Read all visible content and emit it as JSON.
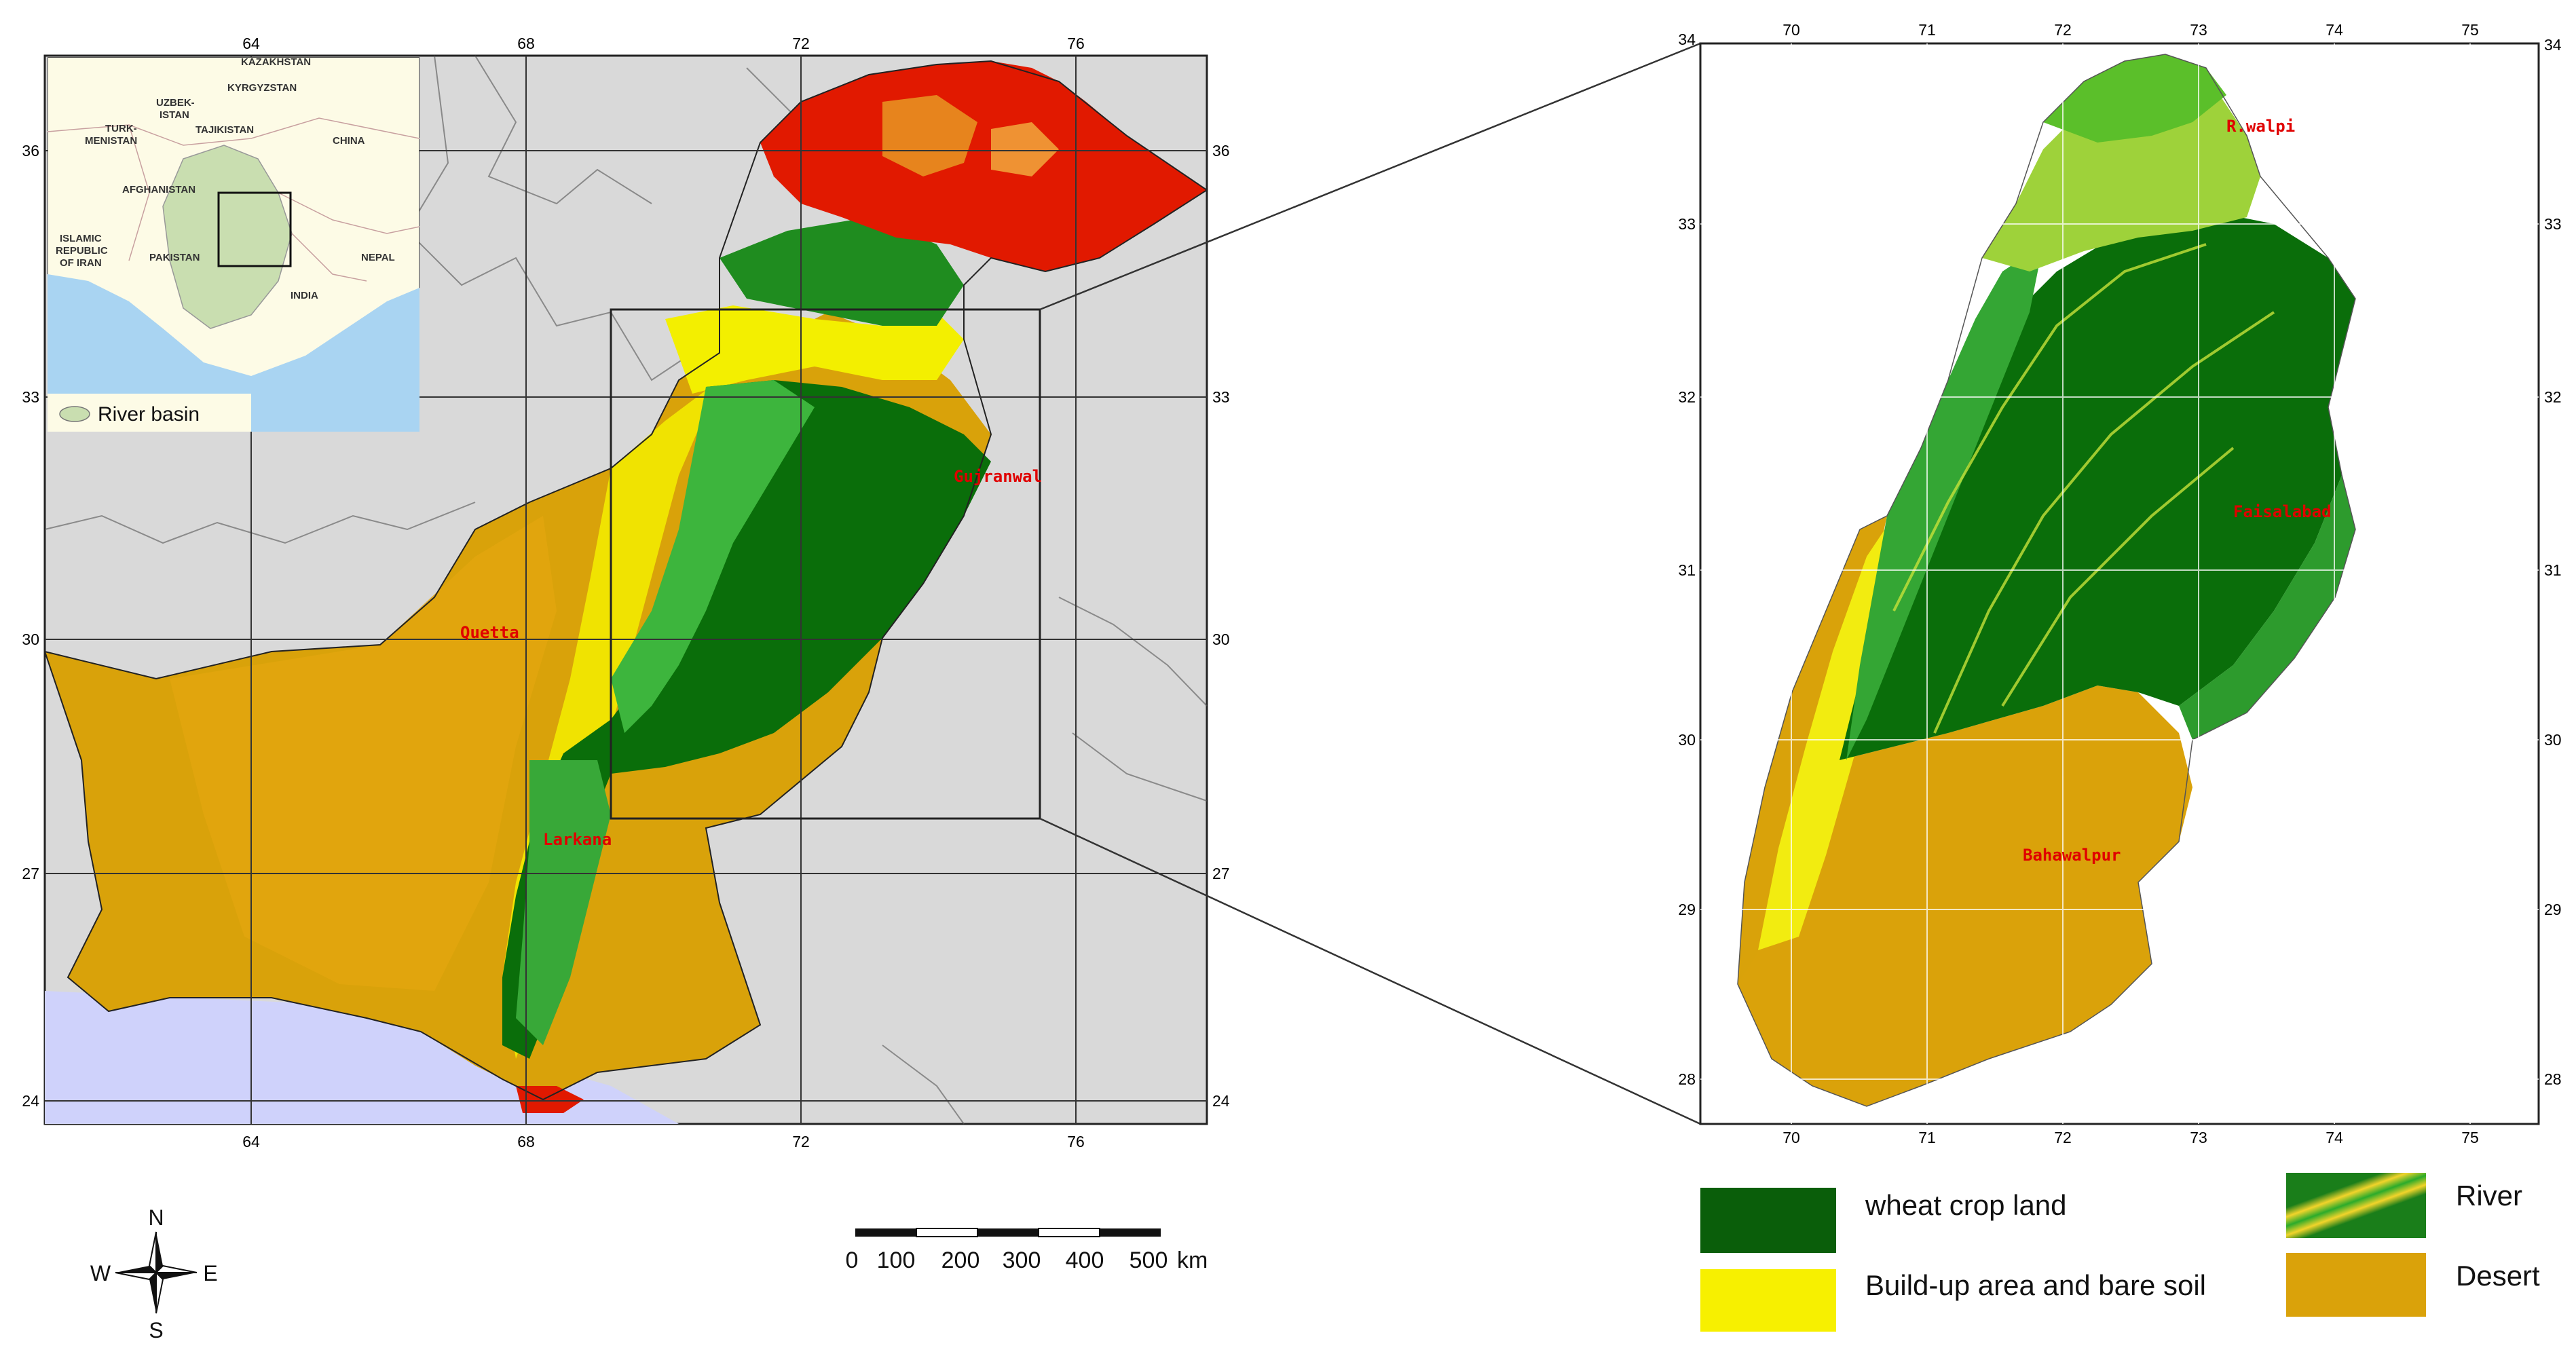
{
  "main_map": {
    "top_ticks": [
      "64",
      "68",
      "72",
      "76"
    ],
    "bottom_ticks": [
      "64",
      "68",
      "72",
      "76"
    ],
    "left_ticks": [
      "36",
      "33",
      "30",
      "27",
      "24"
    ],
    "right_ticks": [
      "36",
      "33",
      "30",
      "27",
      "24"
    ],
    "cities": [
      "Quetta",
      "Larkana",
      "Gujranwal"
    ],
    "colors": {
      "background": "#d9d9d9",
      "sea": "#cfd2fb",
      "desert": "#d9a20a",
      "bare_soil": "#f3ef00",
      "crop": "#0a6e0a",
      "mountain_red": "#e11900"
    }
  },
  "inset_map": {
    "labels": [
      "KAZAKHSTAN",
      "KYRGYZSTAN",
      "UZBEK-",
      "ISTAN",
      "TURK-",
      "MENISTAN",
      "TAJIKISTAN",
      "CHINA",
      "AFGHANISTAN",
      "ISLAMIC",
      "REPUBLIC",
      "OF IRAN",
      "PAKISTAN",
      "NEPAL",
      "INDIA"
    ],
    "legend": "River basin"
  },
  "zoom_map": {
    "top_ticks": [
      "70",
      "71",
      "72",
      "73",
      "74",
      "75"
    ],
    "bottom_ticks": [
      "70",
      "71",
      "72",
      "73",
      "74",
      "75"
    ],
    "left_ticks": [
      "34",
      "33",
      "32",
      "31",
      "30",
      "29",
      "28"
    ],
    "right_ticks": [
      "34",
      "33",
      "32",
      "31",
      "30",
      "29",
      "28"
    ],
    "cities": [
      "R.walpi",
      "Faisalabad",
      "Bahawalpur"
    ]
  },
  "legend": {
    "items": [
      {
        "label": "wheat crop land",
        "color": "#0a5e0a"
      },
      {
        "label": "Build-up area and bare soil",
        "color": "#f7f000"
      },
      {
        "label": "River",
        "color": "#2a9a2a"
      },
      {
        "label": "Desert",
        "color": "#daa20a"
      }
    ]
  },
  "scale_bar": {
    "labels": [
      "0",
      "100",
      "200",
      "300",
      "400",
      "500"
    ],
    "unit": "km"
  },
  "compass": {
    "n": "N",
    "s": "S",
    "e": "E",
    "w": "W"
  }
}
